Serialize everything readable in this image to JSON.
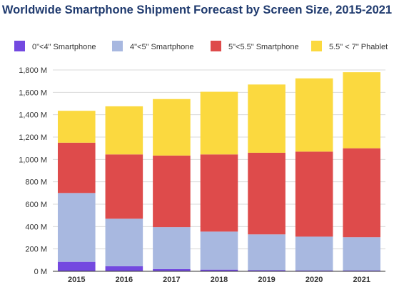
{
  "chart_data": {
    "type": "bar",
    "stacked": true,
    "title": "Worldwide Smartphone Shipment Forecast by Screen Size, 2015-2021",
    "xlabel": "",
    "ylabel": "",
    "categories": [
      "2015",
      "2016",
      "2017",
      "2018",
      "2019",
      "2020",
      "2021"
    ],
    "ylim": [
      0,
      1800
    ],
    "yticks": [
      0,
      200,
      400,
      600,
      800,
      1000,
      1200,
      1400,
      1600,
      1800
    ],
    "ytick_labels": [
      "0 M",
      "200 M",
      "400 M",
      "600 M",
      "800 M",
      "1,000 M",
      "1,200 M",
      "1,400 M",
      "1,600 M",
      "1,800 M"
    ],
    "grid": true,
    "legend_position": "top",
    "series": [
      {
        "name": "0\"<4\" Smartphone",
        "color": "#7349e0",
        "values": [
          85,
          45,
          20,
          15,
          10,
          8,
          8
        ]
      },
      {
        "name": "4\"<5\" Smartphone",
        "color": "#a8b8e0",
        "values": [
          615,
          425,
          375,
          340,
          320,
          302,
          297
        ]
      },
      {
        "name": "5\"<5.5\" Smartphone",
        "color": "#de4b4b",
        "values": [
          450,
          575,
          640,
          690,
          730,
          760,
          795
        ]
      },
      {
        "name": "5.5\" < 7\" Phablet",
        "color": "#fbd93f",
        "values": [
          285,
          430,
          505,
          560,
          610,
          655,
          680
        ]
      }
    ]
  }
}
